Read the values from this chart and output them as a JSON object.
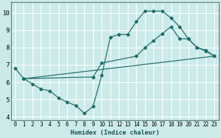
{
  "xlabel": "Humidex (Indice chaleur)",
  "background_color": "#cceaea",
  "grid_color": "#ffffff",
  "line_color": "#1e6b6b",
  "xlim": [
    -0.5,
    23.5
  ],
  "ylim": [
    3.8,
    10.6
  ],
  "xticks": [
    0,
    1,
    2,
    3,
    4,
    5,
    6,
    7,
    8,
    9,
    10,
    11,
    12,
    13,
    14,
    15,
    16,
    17,
    18,
    19,
    20,
    21,
    22,
    23
  ],
  "yticks": [
    4,
    5,
    6,
    7,
    8,
    9,
    10
  ],
  "series1_x": [
    0,
    1,
    2,
    3,
    4,
    5,
    6,
    7,
    8,
    9,
    10,
    11,
    12,
    13,
    14,
    15,
    16,
    17,
    18,
    19,
    20,
    21,
    22,
    23
  ],
  "series1_y": [
    6.8,
    6.2,
    5.9,
    5.6,
    5.5,
    5.1,
    4.85,
    4.65,
    4.2,
    4.6,
    6.4,
    8.6,
    8.75,
    8.75,
    9.5,
    10.1,
    10.1,
    10.1,
    9.7,
    9.2,
    8.5,
    8.0,
    7.8,
    7.5
  ],
  "series2_x": [
    1,
    9,
    10,
    14,
    15,
    16,
    17,
    18,
    19,
    20,
    21,
    22,
    23
  ],
  "series2_y": [
    6.2,
    6.3,
    7.1,
    7.5,
    8.0,
    8.4,
    8.8,
    9.2,
    8.5,
    8.5,
    8.0,
    7.85,
    7.5
  ],
  "series3_x": [
    1,
    23
  ],
  "series3_y": [
    6.2,
    7.5
  ]
}
